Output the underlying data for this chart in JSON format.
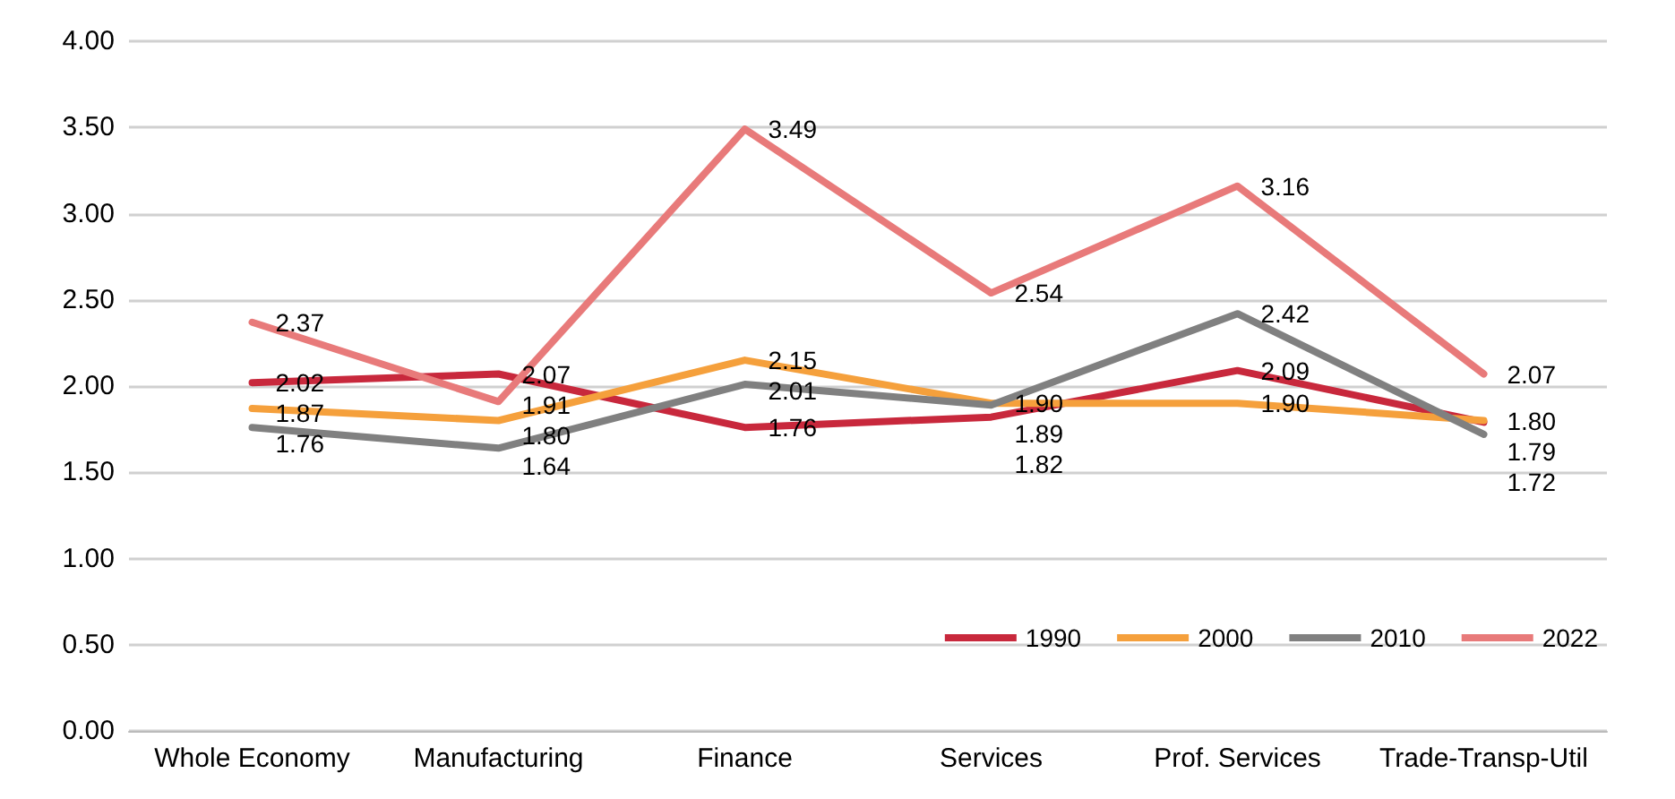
{
  "chart_data": {
    "type": "line",
    "categories": [
      "Whole Economy",
      "Manufacturing",
      "Finance",
      "Services",
      "Prof. Services",
      "Trade-Transp-Util"
    ],
    "series": [
      {
        "name": "1990",
        "color": "#c8283c",
        "values": [
          2.02,
          2.07,
          1.76,
          1.82,
          2.09,
          1.79
        ],
        "value_labels": [
          "2.02",
          "2.07",
          "1.76",
          "1.82",
          "2.09",
          "1.79"
        ]
      },
      {
        "name": "2000",
        "color": "#f5a03c",
        "values": [
          1.87,
          1.8,
          2.15,
          1.9,
          1.9,
          1.8
        ],
        "value_labels": [
          "1.87",
          "1.80",
          "2.15",
          "1.90",
          "1.90",
          "1.80"
        ]
      },
      {
        "name": "2010",
        "color": "#808080",
        "values": [
          1.76,
          1.64,
          2.01,
          1.89,
          2.42,
          1.72
        ],
        "value_labels": [
          "1.76",
          "1.64",
          "2.01",
          "1.89",
          "2.42",
          "1.72"
        ]
      },
      {
        "name": "2022",
        "color": "#e87a7a",
        "values": [
          2.37,
          1.91,
          3.49,
          2.54,
          3.16,
          2.07
        ],
        "value_labels": [
          "2.37",
          "1.91",
          "3.49",
          "2.54",
          "3.16",
          "2.07"
        ]
      }
    ],
    "ylim": [
      0,
      4
    ],
    "yticks": [
      {
        "value": 0,
        "label": "0.00"
      },
      {
        "value": 0.5,
        "label": "0.50"
      },
      {
        "value": 1,
        "label": "1.00"
      },
      {
        "value": 1.5,
        "label": "1.50"
      },
      {
        "value": 2,
        "label": "2.00"
      },
      {
        "value": 2.5,
        "label": "2.50"
      },
      {
        "value": 3,
        "label": "3.00"
      },
      {
        "value": 3.5,
        "label": "3.50"
      },
      {
        "value": 4,
        "label": "4.00"
      }
    ],
    "grid": "y",
    "legend": "bottom right",
    "marker": "none",
    "line_style": "solid"
  }
}
